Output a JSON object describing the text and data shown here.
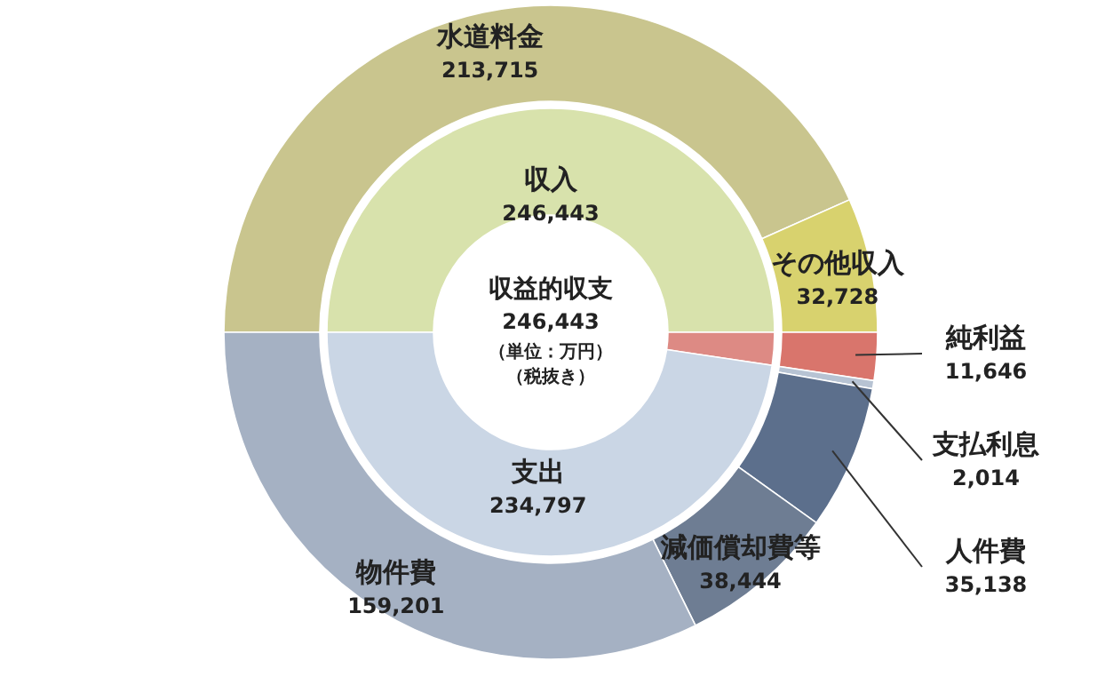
{
  "chart_data": [
    {
      "type": "donut",
      "categories": [
        "水道料金",
        "その他収入",
        "純利益",
        "支払利息",
        "人件費",
        "減価償却費等",
        "物件費"
      ],
      "values": [
        213715,
        32728,
        11646,
        2014,
        35138,
        38444,
        159201
      ],
      "colors": [
        "#c9c58e",
        "#d8d26e",
        "#d9756c",
        "#b7c3d3",
        "#5c6f8c",
        "#6e7d93",
        "#a5b1c3"
      ],
      "value_labels": [
        "213,715",
        "32,728",
        "11,646",
        "2,014",
        "35,138",
        "38,444",
        "159,201"
      ]
    },
    {
      "type": "donut",
      "title": "収益的収支",
      "subtitle": "246,443",
      "annotations": [
        "（単位：万円）",
        "（税抜き）"
      ],
      "categories": [
        "収入",
        null,
        "支出"
      ],
      "values": [
        246443,
        11646,
        234797
      ],
      "colors": [
        "#d8e2ac",
        "#dd8a84",
        "#cad6e5"
      ],
      "value_labels": [
        "246,443",
        null,
        "234,797"
      ]
    }
  ]
}
